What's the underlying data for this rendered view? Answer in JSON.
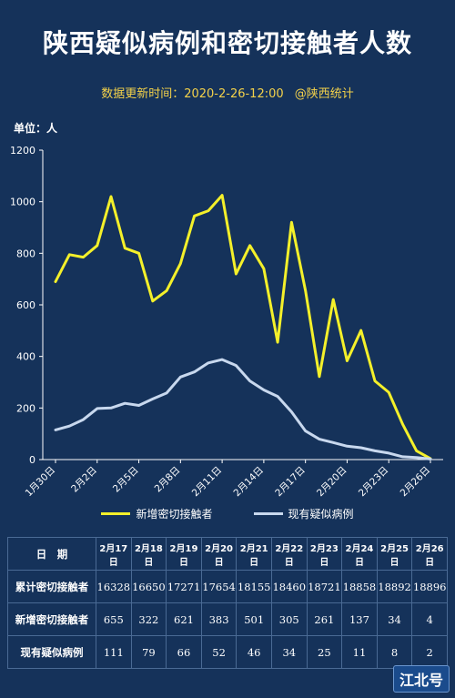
{
  "title": "陕西疑似病例和密切接触者人数",
  "subtitle": "数据更新时间：2020-2-26-12:00",
  "source": "@陕西统计",
  "unit_label": "单位：人",
  "colors": {
    "background": "#15325a",
    "series1": "#f4f02a",
    "series2": "#c8d8ee",
    "subtitle": "#f4d24a"
  },
  "chart_data": {
    "type": "line",
    "ylim": [
      0,
      1200
    ],
    "yticks": [
      0,
      200,
      400,
      600,
      800,
      1000,
      1200
    ],
    "x": [
      "1月30日",
      "1月31日",
      "2月1日",
      "2月2日",
      "2月3日",
      "2月4日",
      "2月5日",
      "2月6日",
      "2月7日",
      "2月8日",
      "2月9日",
      "2月10日",
      "2月11日",
      "2月12日",
      "2月13日",
      "2月14日",
      "2月15日",
      "2月16日",
      "2月17日",
      "2月18日",
      "2月19日",
      "2月20日",
      "2月21日",
      "2月22日",
      "2月23日",
      "2月24日",
      "2月25日",
      "2月26日"
    ],
    "xticks": [
      "1月30日",
      "2月2日",
      "2月5日",
      "2月8日",
      "2月11日",
      "2月14日",
      "2月17日",
      "2月20日",
      "2月23日",
      "2月26日"
    ],
    "series": [
      {
        "name": "新增密切接触者",
        "values": [
          690,
          795,
          785,
          830,
          1020,
          820,
          800,
          615,
          655,
          760,
          945,
          965,
          1025,
          720,
          830,
          740,
          455,
          920,
          655,
          322,
          621,
          383,
          501,
          305,
          261,
          137,
          34,
          4
        ]
      },
      {
        "name": "现有疑似病例",
        "values": [
          115,
          130,
          155,
          198,
          200,
          218,
          210,
          235,
          258,
          320,
          340,
          375,
          388,
          365,
          305,
          270,
          245,
          185,
          111,
          79,
          66,
          52,
          46,
          34,
          25,
          11,
          8,
          2
        ]
      }
    ]
  },
  "table": {
    "header_label": "日　期",
    "dates": [
      "2月17日",
      "2月18日",
      "2月19日",
      "2月20日",
      "2月21日",
      "2月22日",
      "2月23日",
      "2月24日",
      "2月25日",
      "2月26日"
    ],
    "rows": [
      {
        "label": "累计密切接触者",
        "values": [
          "16328",
          "16650",
          "17271",
          "17654",
          "18155",
          "18460",
          "18721",
          "18858",
          "18892",
          "18896"
        ]
      },
      {
        "label": "新增密切接触者",
        "values": [
          "655",
          "322",
          "621",
          "383",
          "501",
          "305",
          "261",
          "137",
          "34",
          "4"
        ]
      },
      {
        "label": "现有疑似病例",
        "values": [
          "111",
          "79",
          "66",
          "52",
          "46",
          "34",
          "25",
          "11",
          "8",
          "2"
        ]
      }
    ]
  },
  "watermark": "江北号"
}
